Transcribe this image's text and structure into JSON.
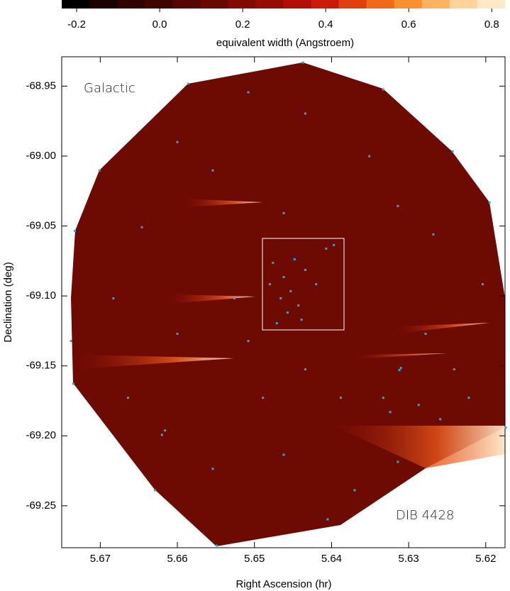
{
  "chart_data": {
    "type": "scatter",
    "colorbar": {
      "label": "equivalent width (Angstroem)",
      "lim": [
        -0.236,
        0.832
      ],
      "ticks": [
        -0.2,
        {
          "value": 0,
          "label": "0.0"
        },
        0.2,
        0.4,
        0.6,
        0.8
      ],
      "colors": [
        "#000000",
        "#1a0000",
        "#2d0200",
        "#400400",
        "#550600",
        "#6a0800",
        "#800a02",
        "#960c04",
        "#b00e06",
        "#cc1a08",
        "#e0400e",
        "#f06a1a",
        "#f89030",
        "#fcb460",
        "#fdd49a",
        "#fee8c8"
      ]
    },
    "xlabel": "Right Ascension (hr)",
    "ylabel": "Declination (deg)",
    "annotations": [
      "Galactic",
      "DIB 4428"
    ],
    "xlim": [
      5.675,
      5.6175
    ],
    "ylim": [
      -69.28,
      -68.929
    ],
    "xticks": [
      5.67,
      5.66,
      5.65,
      5.64,
      5.63,
      5.62
    ],
    "yticks": [
      -68.95,
      {
        "value": -69,
        "label": "-69.00"
      },
      -69.05,
      {
        "value": -69.1,
        "label": "-69.10"
      },
      -69.15,
      {
        "value": -69.2,
        "label": "-69.20"
      },
      -69.25
    ],
    "series": [
      {
        "color": "#2aa8dc",
        "x": [
          5.6437,
          5.6586,
          5.6333,
          5.6243,
          5.6195,
          5.6701,
          5.6733,
          5.6738,
          5.6735,
          5.6629,
          5.6549,
          5.6405,
          5.6174,
          5.6616,
          5.662,
          5.6312,
          5.631,
          5.6476,
          5.6462,
          5.6453,
          5.6466,
          5.6443,
          5.6457,
          5.648,
          5.6434,
          5.642,
          5.6407,
          5.6397,
          5.6448,
          5.6471,
          5.6439,
          5.6462,
          5.6508,
          5.6434,
          5.6489,
          5.6388,
          5.6333,
          5.6324,
          5.6287,
          5.6259,
          5.6278,
          5.6241,
          5.6222,
          5.6204,
          5.6268,
          5.6351,
          5.6554,
          5.6646,
          5.6683,
          5.66,
          5.6664,
          5.6554,
          5.6462,
          5.637,
          5.6314,
          5.6508,
          5.6434,
          5.66,
          5.6314,
          5.6526
        ],
        "y": [
          -68.9331,
          -68.9483,
          -68.9524,
          -68.9966,
          -69.0331,
          -69.0103,
          -69.0535,
          -69.1322,
          -69.1627,
          -69.2389,
          -69.2785,
          -69.2597,
          -69.1942,
          -69.1962,
          -69.1993,
          -69.153,
          -69.1515,
          -69.0763,
          -69.0865,
          -69.0966,
          -69.1017,
          -69.1068,
          -69.1119,
          -69.0916,
          -69.0814,
          -69.0916,
          -69.0662,
          -69.0636,
          -69.0738,
          -69.1195,
          -69.117,
          -69.0408,
          -69.1322,
          -69.1525,
          -69.1728,
          -69.1728,
          -69.1728,
          -69.183,
          -69.1779,
          -69.1881,
          -69.1271,
          -69.1525,
          -69.1728,
          -69.0916,
          -69.056,
          -69.0001,
          -69.0103,
          -69.0509,
          -69.1017,
          -69.1271,
          -69.1728,
          -69.2236,
          -69.2135,
          -69.2389,
          -69.2186,
          -68.9544,
          -68.9696,
          -68.99,
          -69.0357,
          -69.1017
        ]
      }
    ]
  }
}
